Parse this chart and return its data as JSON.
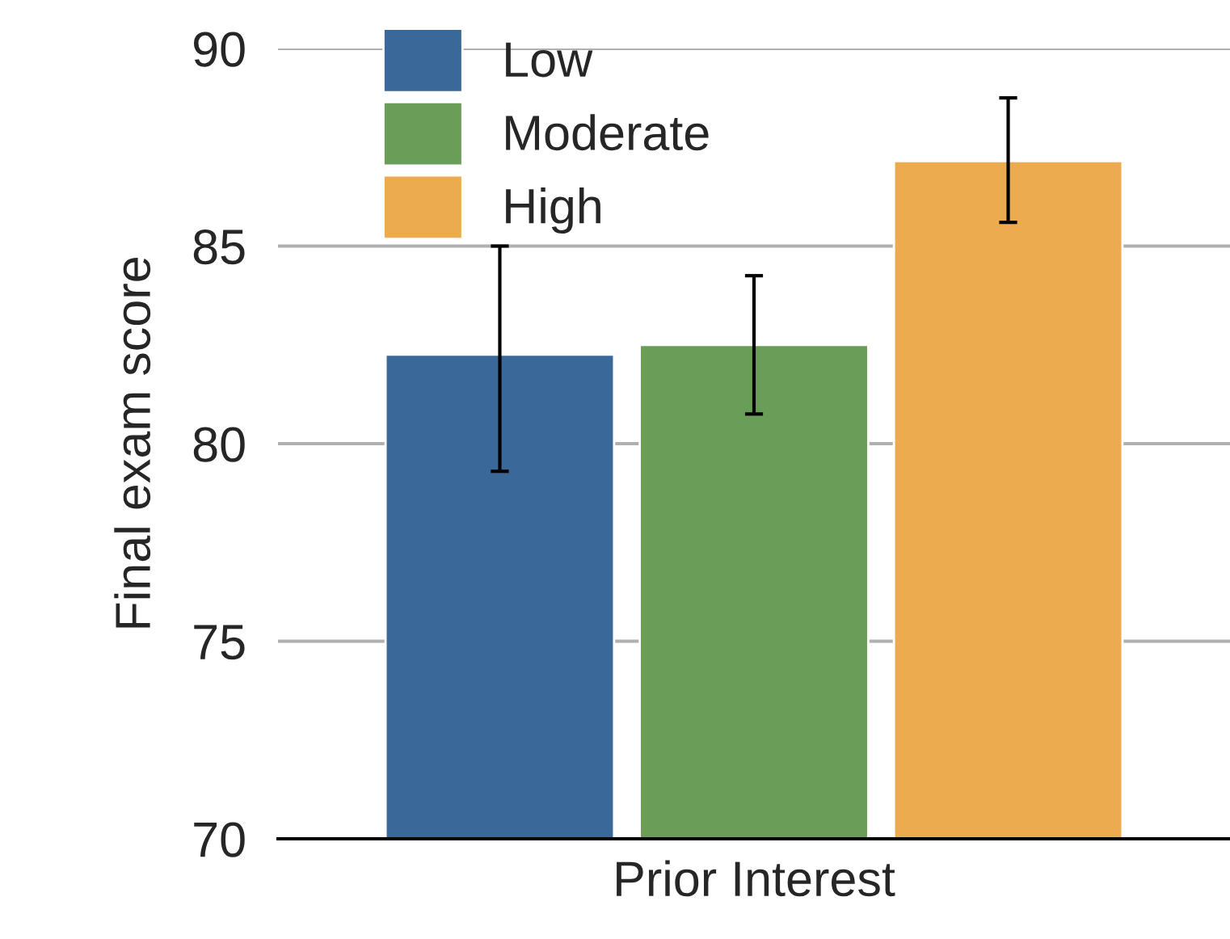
{
  "chart_data": {
    "type": "bar",
    "xlabel": "Prior Interest",
    "ylabel": "Final exam score",
    "categories": [
      null
    ],
    "series": [
      {
        "name": "Low",
        "color": "#3a6898",
        "values": [
          82.25
        ],
        "errors": [
          [
            79.3,
            85.0
          ]
        ]
      },
      {
        "name": "Moderate",
        "color": "#6a9e58",
        "values": [
          82.5
        ],
        "errors": [
          [
            80.75,
            84.25
          ]
        ]
      },
      {
        "name": "High",
        "color": "#ebab4e",
        "values": [
          87.15
        ],
        "errors": [
          [
            85.6,
            88.75
          ]
        ]
      }
    ],
    "ylim": [
      70,
      90
    ],
    "yticks": [
      70,
      75,
      80,
      85,
      90
    ],
    "grid": "y",
    "legend": "top left"
  }
}
